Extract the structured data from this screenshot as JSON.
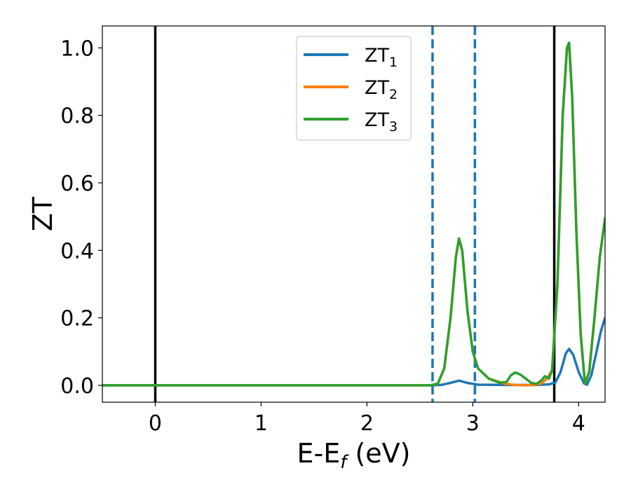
{
  "chart_data": {
    "type": "line",
    "xlabel": "E-E",
    "xlabel_sub": "f",
    "xlabel_unit": " (eV)",
    "ylabel": "ZT",
    "xlim": [
      -0.5,
      4.25
    ],
    "ylim": [
      -0.05,
      1.065
    ],
    "x_ticks": [
      0,
      1,
      2,
      3,
      4
    ],
    "x_tick_labels": [
      "0",
      "1",
      "2",
      "3",
      "4"
    ],
    "y_ticks": [
      0.0,
      0.2,
      0.4,
      0.6,
      0.8,
      1.0
    ],
    "y_tick_labels": [
      "0.0",
      "0.2",
      "0.4",
      "0.6",
      "0.8",
      "1.0"
    ],
    "grid": false,
    "legend_position": "top-center",
    "colors": {
      "ZT1": "#1f77b4",
      "ZT2": "#ff7f0e",
      "ZT3": "#2ca02c",
      "solid_vline": "#000000",
      "dashed_vline": "#1f77b4"
    },
    "vertical_lines": [
      {
        "x": 0.0,
        "style": "solid",
        "color": "#000000"
      },
      {
        "x": 3.77,
        "style": "solid",
        "color": "#000000"
      },
      {
        "x": 2.62,
        "style": "dashed",
        "color": "#1f77b4"
      },
      {
        "x": 3.02,
        "style": "dashed",
        "color": "#1f77b4"
      }
    ],
    "series": [
      {
        "name": "ZT",
        "sub": "1",
        "color": "#1f77b4",
        "points": [
          [
            -0.5,
            0
          ],
          [
            2.6,
            0
          ],
          [
            2.7,
            0.001
          ],
          [
            2.8,
            0.008
          ],
          [
            2.87,
            0.014
          ],
          [
            2.95,
            0.007
          ],
          [
            3.05,
            0.002
          ],
          [
            3.3,
            0.001
          ],
          [
            3.6,
            0.001
          ],
          [
            3.72,
            0.003
          ],
          [
            3.78,
            0.008
          ],
          [
            3.83,
            0.04
          ],
          [
            3.88,
            0.095
          ],
          [
            3.91,
            0.108
          ],
          [
            3.95,
            0.09
          ],
          [
            4.0,
            0.04
          ],
          [
            4.05,
            0.006
          ],
          [
            4.08,
            0.002
          ],
          [
            4.12,
            0.03
          ],
          [
            4.17,
            0.1
          ],
          [
            4.21,
            0.16
          ],
          [
            4.25,
            0.2
          ]
        ]
      },
      {
        "name": "ZT",
        "sub": "2",
        "color": "#ff7f0e",
        "points": [
          [
            -0.5,
            0
          ],
          [
            2.6,
            0
          ],
          [
            2.67,
            0.005
          ],
          [
            2.73,
            0.05
          ],
          [
            2.79,
            0.2
          ],
          [
            2.84,
            0.38
          ],
          [
            2.87,
            0.435
          ],
          [
            2.9,
            0.4
          ],
          [
            2.95,
            0.22
          ],
          [
            3.0,
            0.1
          ],
          [
            3.05,
            0.05
          ],
          [
            3.15,
            0.02
          ],
          [
            3.25,
            0.01
          ],
          [
            3.3,
            0.005
          ],
          [
            3.4,
            0.001
          ],
          [
            3.5,
            0
          ],
          [
            3.58,
            0.001
          ],
          [
            3.65,
            0.006
          ],
          [
            3.7,
            0.02
          ],
          [
            3.75,
            0.045
          ],
          [
            3.8,
            0.3
          ],
          [
            3.85,
            0.8
          ],
          [
            3.89,
            1.0
          ],
          [
            3.91,
            1.015
          ],
          [
            3.94,
            0.85
          ],
          [
            3.98,
            0.45
          ],
          [
            4.02,
            0.15
          ],
          [
            4.06,
            0.005
          ],
          [
            4.1,
            0.04
          ],
          [
            4.15,
            0.2
          ],
          [
            4.2,
            0.38
          ],
          [
            4.25,
            0.495
          ]
        ]
      },
      {
        "name": "ZT",
        "sub": "3",
        "color": "#2ca02c",
        "points": [
          [
            -0.5,
            0
          ],
          [
            2.6,
            0
          ],
          [
            2.67,
            0.005
          ],
          [
            2.73,
            0.05
          ],
          [
            2.79,
            0.2
          ],
          [
            2.84,
            0.38
          ],
          [
            2.87,
            0.435
          ],
          [
            2.9,
            0.4
          ],
          [
            2.95,
            0.22
          ],
          [
            3.0,
            0.1
          ],
          [
            3.05,
            0.05
          ],
          [
            3.15,
            0.02
          ],
          [
            3.25,
            0.008
          ],
          [
            3.32,
            0.01
          ],
          [
            3.36,
            0.03
          ],
          [
            3.4,
            0.038
          ],
          [
            3.45,
            0.032
          ],
          [
            3.5,
            0.02
          ],
          [
            3.55,
            0.008
          ],
          [
            3.6,
            0.004
          ],
          [
            3.65,
            0.015
          ],
          [
            3.68,
            0.027
          ],
          [
            3.72,
            0.02
          ],
          [
            3.75,
            0.045
          ],
          [
            3.8,
            0.3
          ],
          [
            3.85,
            0.8
          ],
          [
            3.89,
            1.0
          ],
          [
            3.91,
            1.015
          ],
          [
            3.94,
            0.85
          ],
          [
            3.98,
            0.45
          ],
          [
            4.02,
            0.15
          ],
          [
            4.06,
            0.005
          ],
          [
            4.1,
            0.04
          ],
          [
            4.15,
            0.2
          ],
          [
            4.2,
            0.38
          ],
          [
            4.25,
            0.495
          ]
        ]
      }
    ]
  }
}
